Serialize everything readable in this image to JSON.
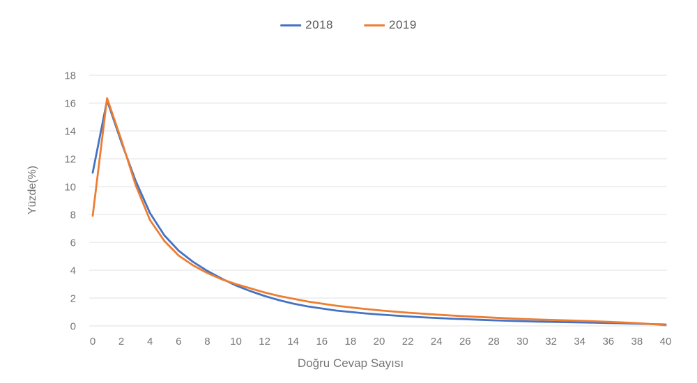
{
  "chart_data": {
    "type": "line",
    "title": "",
    "xlabel": "Doğru Cevap Sayısı",
    "ylabel": "Yüzde(%)",
    "xlim": [
      0,
      40
    ],
    "ylim": [
      0,
      18
    ],
    "grid": "horizontal-only",
    "legend_position": "top-center",
    "x_ticks": [
      0,
      2,
      4,
      6,
      8,
      10,
      12,
      14,
      16,
      18,
      20,
      22,
      24,
      26,
      28,
      30,
      32,
      34,
      36,
      38,
      40
    ],
    "y_ticks": [
      0,
      2,
      4,
      6,
      8,
      10,
      12,
      14,
      16,
      18
    ],
    "x": [
      0,
      1,
      2,
      3,
      4,
      5,
      6,
      7,
      8,
      9,
      10,
      11,
      12,
      13,
      14,
      15,
      16,
      17,
      18,
      19,
      20,
      21,
      22,
      23,
      24,
      25,
      26,
      27,
      28,
      29,
      30,
      31,
      32,
      33,
      34,
      35,
      36,
      37,
      38,
      39,
      40
    ],
    "series": [
      {
        "name": "2018",
        "color": "#4472C4",
        "values": [
          11.0,
          16.2,
          13.2,
          10.4,
          8.1,
          6.5,
          5.4,
          4.6,
          3.95,
          3.4,
          2.9,
          2.5,
          2.15,
          1.85,
          1.6,
          1.4,
          1.25,
          1.1,
          1.0,
          0.9,
          0.82,
          0.75,
          0.68,
          0.62,
          0.57,
          0.52,
          0.48,
          0.44,
          0.4,
          0.37,
          0.34,
          0.31,
          0.29,
          0.27,
          0.25,
          0.23,
          0.21,
          0.19,
          0.16,
          0.13,
          0.1
        ]
      },
      {
        "name": "2019",
        "color": "#ED7D31",
        "values": [
          7.9,
          16.35,
          13.35,
          10.1,
          7.6,
          6.1,
          5.05,
          4.35,
          3.8,
          3.35,
          3.0,
          2.7,
          2.4,
          2.15,
          1.95,
          1.75,
          1.6,
          1.45,
          1.33,
          1.22,
          1.12,
          1.03,
          0.95,
          0.88,
          0.81,
          0.75,
          0.69,
          0.64,
          0.59,
          0.54,
          0.5,
          0.46,
          0.43,
          0.4,
          0.37,
          0.33,
          0.29,
          0.25,
          0.2,
          0.13,
          0.05
        ]
      }
    ],
    "colors": {
      "grid_line": "#ECECEC",
      "tick_text": "#757575",
      "legend_text": "#595959"
    }
  }
}
